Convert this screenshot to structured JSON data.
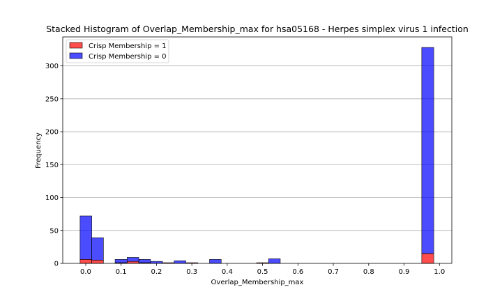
{
  "chart_data": {
    "type": "bar",
    "stacked": true,
    "title": "Stacked Histogram of Overlap_Membership_max for hsa05168 - Herpes simplex virus 1 infection",
    "xlabel": "Overlap_Membership_max",
    "ylabel": "Frequency",
    "xlim": [
      -0.065,
      1.035
    ],
    "ylim": [
      0,
      344
    ],
    "xticks": [
      0.0,
      0.1,
      0.2,
      0.3,
      0.4,
      0.5,
      0.6,
      0.7,
      0.8,
      0.9,
      1.0
    ],
    "xtick_labels": [
      "0.0",
      "0.1",
      "0.2",
      "0.3",
      "0.4",
      "0.5",
      "0.6",
      "0.7",
      "0.8",
      "0.9",
      "1.0"
    ],
    "yticks": [
      0,
      50,
      100,
      150,
      200,
      250,
      300
    ],
    "ytick_labels": [
      "0",
      "50",
      "100",
      "150",
      "200",
      "250",
      "300"
    ],
    "grid": "y",
    "legend_position": "top-left",
    "bin_edges": [
      -0.016,
      0.017,
      0.05,
      0.083,
      0.117,
      0.15,
      0.183,
      0.217,
      0.25,
      0.283,
      0.317,
      0.35,
      0.383,
      0.417,
      0.45,
      0.483,
      0.517,
      0.55,
      0.583,
      0.617,
      0.65,
      0.683,
      0.717,
      0.75,
      0.783,
      0.817,
      0.85,
      0.883,
      0.917,
      0.95,
      0.984
    ],
    "series": [
      {
        "name": "Crisp Membership = 1",
        "color": "#ff0000",
        "values": [
          6,
          5,
          0,
          1,
          3,
          1,
          0,
          1,
          0,
          1,
          0,
          0,
          0,
          0,
          0,
          1,
          0,
          0,
          0,
          0,
          0,
          0,
          0,
          0,
          0,
          0,
          0,
          0,
          0,
          15
        ]
      },
      {
        "name": "Crisp Membership = 0",
        "color": "#0000ff",
        "values": [
          66,
          34,
          0,
          5,
          6,
          5,
          3,
          0,
          4,
          0,
          0,
          6,
          0,
          0,
          0,
          0,
          7,
          0,
          0,
          0,
          0,
          0,
          0,
          0,
          0,
          0,
          0,
          0,
          0,
          313
        ]
      }
    ]
  }
}
